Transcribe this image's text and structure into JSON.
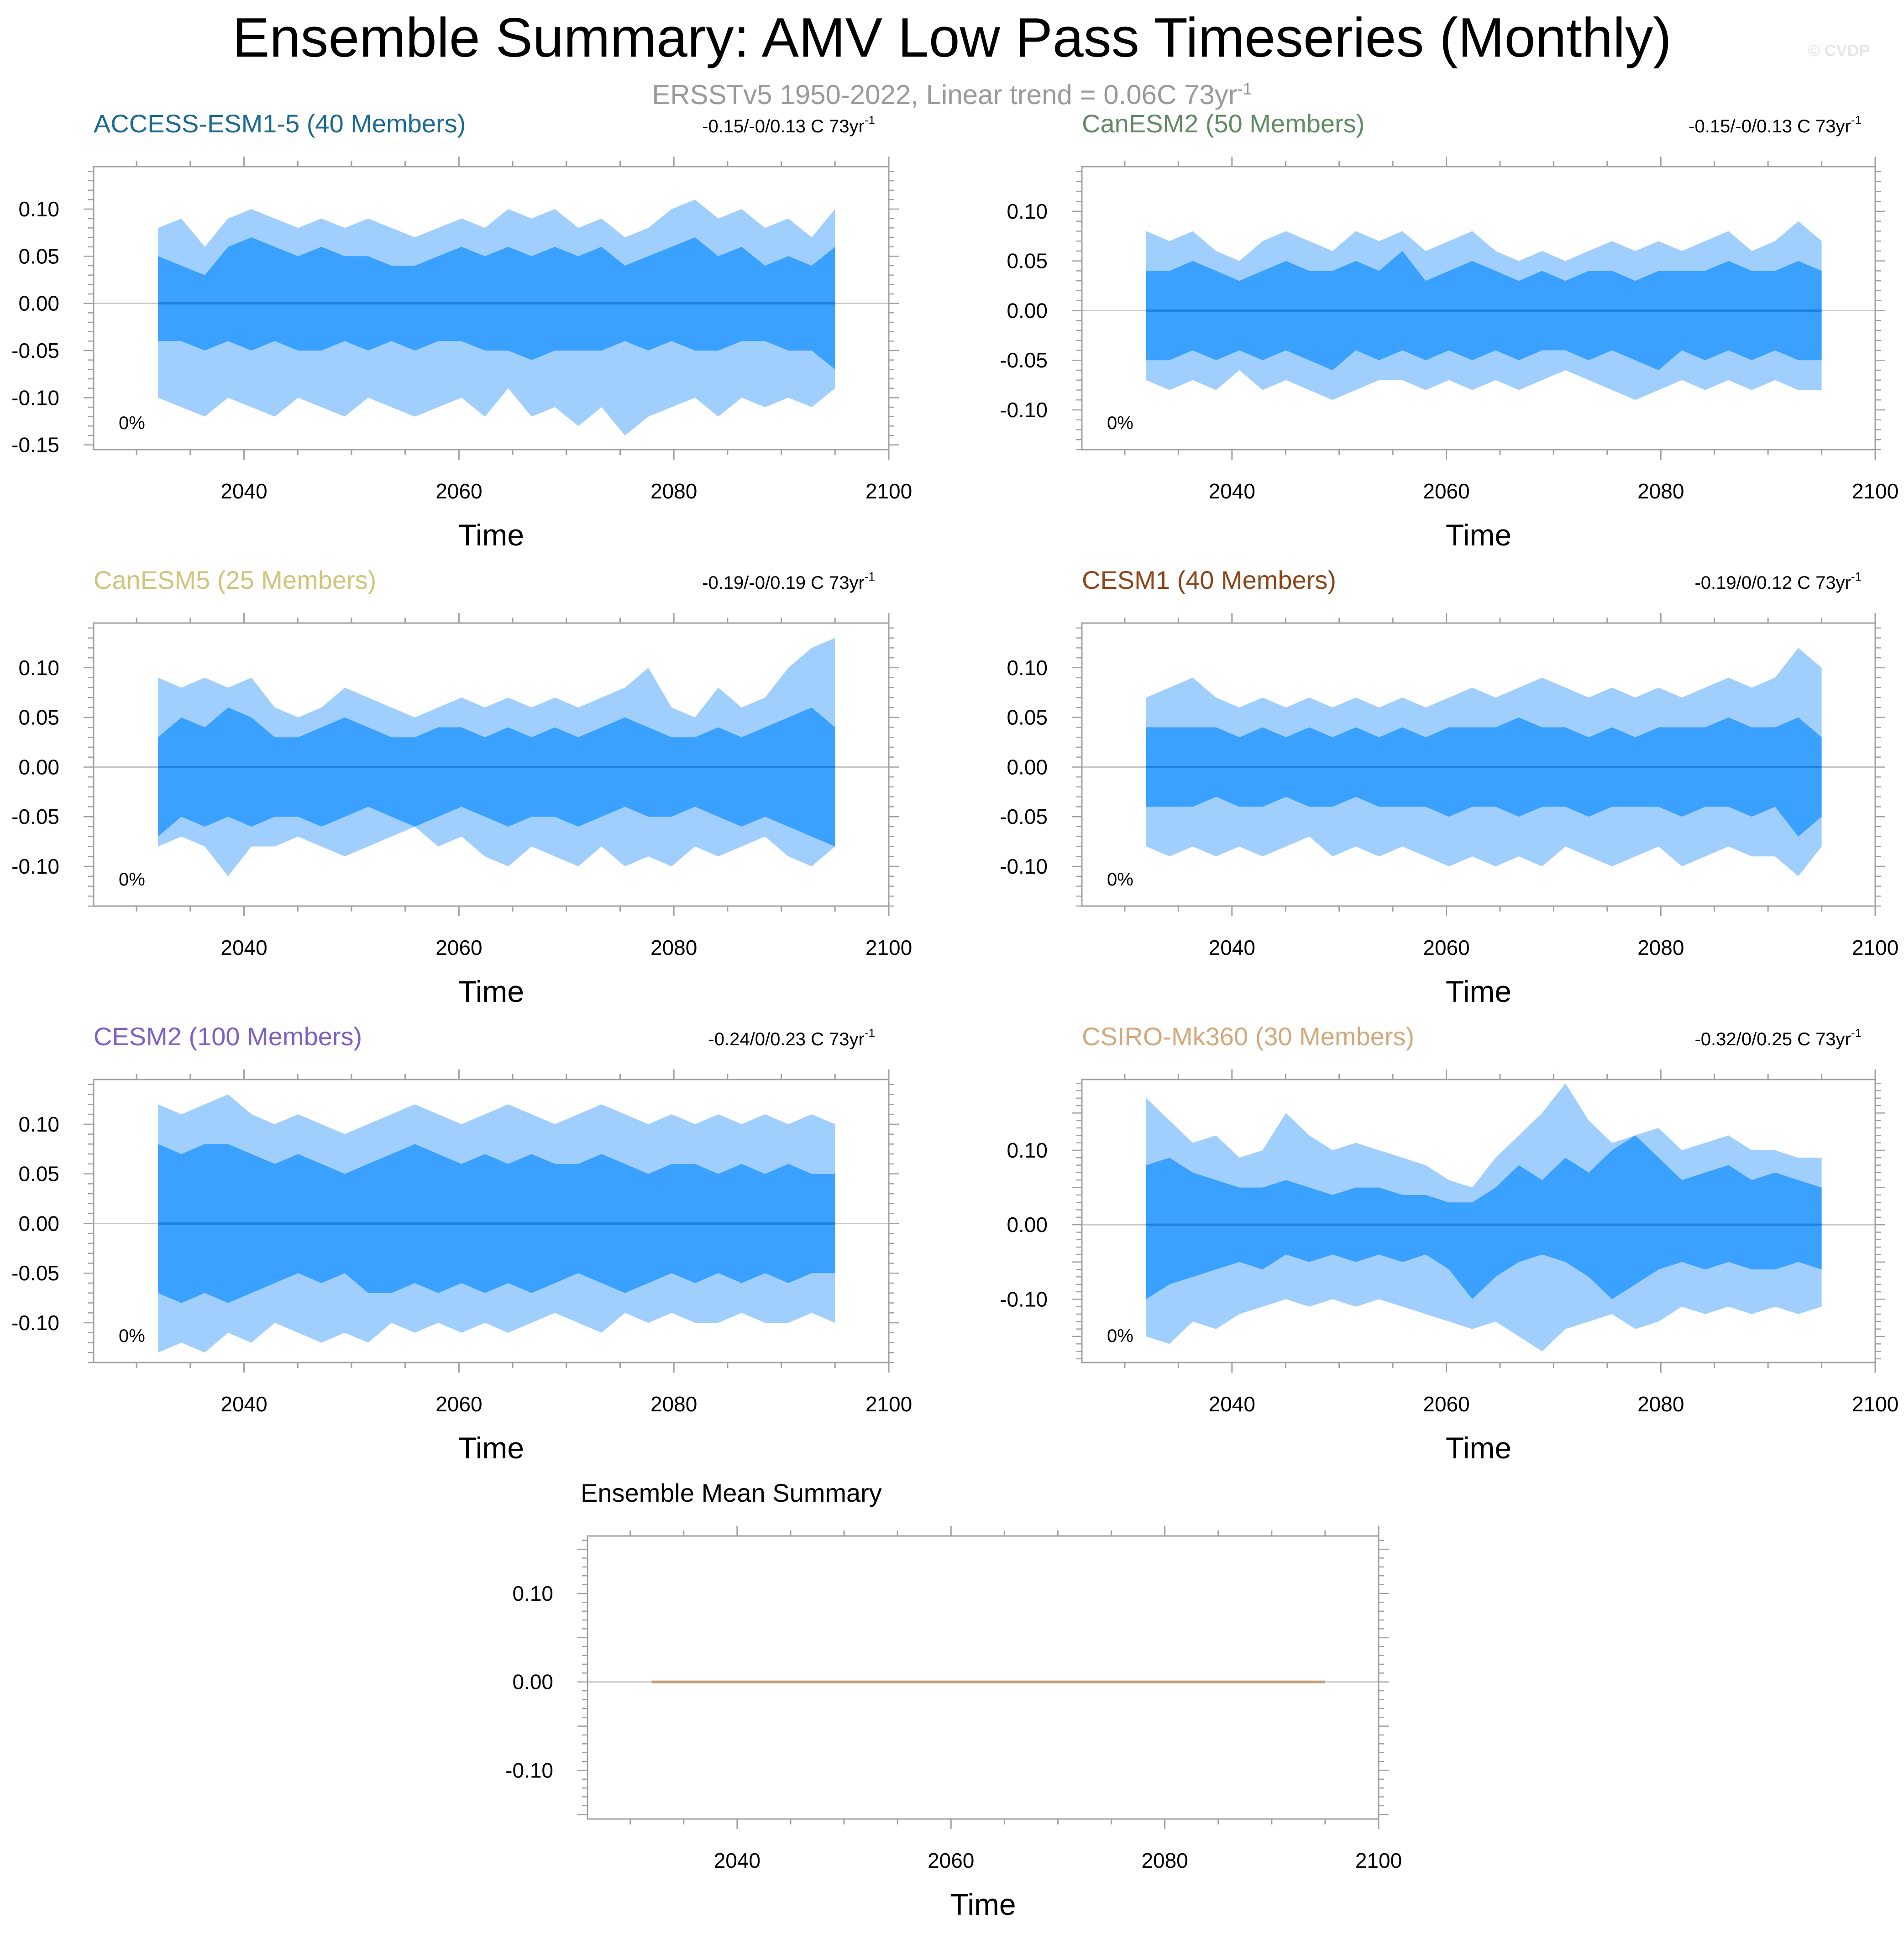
{
  "title": "Ensemble Summary: AMV Low Pass Timeseries (Monthly)",
  "subtitle": "ERSSTv5 1950-2022, Linear trend = 0.06C 73yr",
  "subtitle_sup": "-1",
  "watermark": "© CVDP",
  "colors": {
    "outer_band": "#a1cffd",
    "inner_band": "#3aa1fe",
    "mean_line": "#1f80e2",
    "zero_line": "#c8c8c8",
    "ensemble_mean_line": "#c2a077"
  },
  "chart_data": [
    {
      "type": "area",
      "title": "ACCESS-ESM1-5 (40 Members)",
      "title_color": "#1b6a91",
      "annotation": "-0.15/-0/0.13 C 73yr",
      "annotation_sup": "-1",
      "corner_label": "0%",
      "xlabel": "Time",
      "xlim": [
        2026,
        2100
      ],
      "ylim": [
        -0.155,
        0.145
      ],
      "xticks": [
        2040,
        2060,
        2080,
        2100
      ],
      "yticks": [
        0.1,
        0.05,
        0.0,
        -0.05,
        -0.1,
        -0.15
      ],
      "ytick_labels": [
        "0.10",
        "0.05",
        "0.00",
        "-0.05",
        "-0.10",
        "-0.15"
      ],
      "x_start": 2032,
      "x_end": 2095,
      "outer_upper": [
        0.08,
        0.09,
        0.06,
        0.09,
        0.1,
        0.09,
        0.08,
        0.09,
        0.08,
        0.09,
        0.08,
        0.07,
        0.08,
        0.09,
        0.08,
        0.1,
        0.09,
        0.1,
        0.08,
        0.09,
        0.07,
        0.08,
        0.1,
        0.11,
        0.09,
        0.1,
        0.08,
        0.09,
        0.07,
        0.1
      ],
      "inner_upper": [
        0.05,
        0.04,
        0.03,
        0.06,
        0.07,
        0.06,
        0.05,
        0.06,
        0.05,
        0.05,
        0.04,
        0.04,
        0.05,
        0.06,
        0.05,
        0.06,
        0.05,
        0.06,
        0.05,
        0.06,
        0.04,
        0.05,
        0.06,
        0.07,
        0.05,
        0.06,
        0.04,
        0.05,
        0.04,
        0.06
      ],
      "inner_lower": [
        -0.04,
        -0.04,
        -0.05,
        -0.04,
        -0.05,
        -0.04,
        -0.05,
        -0.05,
        -0.04,
        -0.05,
        -0.04,
        -0.05,
        -0.04,
        -0.04,
        -0.05,
        -0.05,
        -0.06,
        -0.05,
        -0.05,
        -0.05,
        -0.04,
        -0.05,
        -0.04,
        -0.05,
        -0.05,
        -0.04,
        -0.04,
        -0.05,
        -0.05,
        -0.07
      ],
      "outer_lower": [
        -0.1,
        -0.11,
        -0.12,
        -0.1,
        -0.11,
        -0.12,
        -0.1,
        -0.11,
        -0.12,
        -0.1,
        -0.11,
        -0.12,
        -0.11,
        -0.1,
        -0.12,
        -0.09,
        -0.12,
        -0.11,
        -0.13,
        -0.11,
        -0.14,
        -0.12,
        -0.11,
        -0.1,
        -0.12,
        -0.1,
        -0.11,
        -0.1,
        -0.11,
        -0.09
      ]
    },
    {
      "type": "area",
      "title": "CanESM2 (50 Members)",
      "title_color": "#5f8a62",
      "annotation": "-0.15/-0/0.13 C 73yr",
      "annotation_sup": "-1",
      "corner_label": "0%",
      "xlabel": "Time",
      "xlim": [
        2026,
        2100
      ],
      "ylim": [
        -0.14,
        0.145
      ],
      "xticks": [
        2040,
        2060,
        2080,
        2100
      ],
      "yticks": [
        0.1,
        0.05,
        0.0,
        -0.05,
        -0.1
      ],
      "ytick_labels": [
        "0.10",
        "0.05",
        "0.00",
        "-0.05",
        "-0.10"
      ],
      "x_start": 2032,
      "x_end": 2095,
      "outer_upper": [
        0.08,
        0.07,
        0.08,
        0.06,
        0.05,
        0.07,
        0.08,
        0.07,
        0.06,
        0.08,
        0.07,
        0.08,
        0.06,
        0.07,
        0.08,
        0.06,
        0.05,
        0.06,
        0.05,
        0.06,
        0.07,
        0.06,
        0.07,
        0.06,
        0.07,
        0.08,
        0.06,
        0.07,
        0.09,
        0.07
      ],
      "inner_upper": [
        0.04,
        0.04,
        0.05,
        0.04,
        0.03,
        0.04,
        0.05,
        0.04,
        0.04,
        0.05,
        0.04,
        0.06,
        0.03,
        0.04,
        0.05,
        0.04,
        0.03,
        0.04,
        0.03,
        0.04,
        0.04,
        0.03,
        0.04,
        0.04,
        0.04,
        0.05,
        0.04,
        0.04,
        0.05,
        0.04
      ],
      "inner_lower": [
        -0.05,
        -0.05,
        -0.04,
        -0.05,
        -0.04,
        -0.05,
        -0.04,
        -0.05,
        -0.06,
        -0.04,
        -0.05,
        -0.04,
        -0.05,
        -0.04,
        -0.05,
        -0.04,
        -0.05,
        -0.04,
        -0.04,
        -0.05,
        -0.04,
        -0.05,
        -0.06,
        -0.04,
        -0.05,
        -0.04,
        -0.05,
        -0.04,
        -0.05,
        -0.05
      ],
      "outer_lower": [
        -0.07,
        -0.08,
        -0.07,
        -0.08,
        -0.06,
        -0.08,
        -0.07,
        -0.08,
        -0.09,
        -0.08,
        -0.07,
        -0.07,
        -0.08,
        -0.07,
        -0.08,
        -0.07,
        -0.08,
        -0.07,
        -0.06,
        -0.07,
        -0.08,
        -0.09,
        -0.08,
        -0.07,
        -0.08,
        -0.07,
        -0.08,
        -0.07,
        -0.08,
        -0.08
      ]
    },
    {
      "type": "area",
      "title": "CanESM5 (25 Members)",
      "title_color": "#cfc47a",
      "annotation": "-0.19/-0/0.19 C 73yr",
      "annotation_sup": "-1",
      "corner_label": "0%",
      "xlabel": "Time",
      "xlim": [
        2026,
        2100
      ],
      "ylim": [
        -0.14,
        0.145
      ],
      "xticks": [
        2040,
        2060,
        2080,
        2100
      ],
      "yticks": [
        0.1,
        0.05,
        0.0,
        -0.05,
        -0.1
      ],
      "ytick_labels": [
        "0.10",
        "0.05",
        "0.00",
        "-0.05",
        "-0.10"
      ],
      "x_start": 2032,
      "x_end": 2095,
      "outer_upper": [
        0.09,
        0.08,
        0.09,
        0.08,
        0.09,
        0.06,
        0.05,
        0.06,
        0.08,
        0.07,
        0.06,
        0.05,
        0.06,
        0.07,
        0.06,
        0.07,
        0.06,
        0.07,
        0.06,
        0.07,
        0.08,
        0.1,
        0.06,
        0.05,
        0.08,
        0.06,
        0.07,
        0.1,
        0.12,
        0.13
      ],
      "inner_upper": [
        0.03,
        0.05,
        0.04,
        0.06,
        0.05,
        0.03,
        0.03,
        0.04,
        0.05,
        0.04,
        0.03,
        0.03,
        0.04,
        0.04,
        0.03,
        0.04,
        0.03,
        0.04,
        0.03,
        0.04,
        0.05,
        0.04,
        0.03,
        0.03,
        0.04,
        0.03,
        0.04,
        0.05,
        0.06,
        0.04
      ],
      "inner_lower": [
        -0.07,
        -0.05,
        -0.06,
        -0.05,
        -0.06,
        -0.05,
        -0.05,
        -0.06,
        -0.05,
        -0.04,
        -0.05,
        -0.06,
        -0.05,
        -0.04,
        -0.05,
        -0.06,
        -0.05,
        -0.05,
        -0.06,
        -0.05,
        -0.04,
        -0.05,
        -0.05,
        -0.04,
        -0.05,
        -0.06,
        -0.05,
        -0.06,
        -0.07,
        -0.08
      ],
      "outer_lower": [
        -0.08,
        -0.07,
        -0.08,
        -0.11,
        -0.08,
        -0.08,
        -0.07,
        -0.08,
        -0.09,
        -0.08,
        -0.07,
        -0.06,
        -0.08,
        -0.07,
        -0.09,
        -0.1,
        -0.08,
        -0.09,
        -0.1,
        -0.08,
        -0.1,
        -0.09,
        -0.1,
        -0.08,
        -0.09,
        -0.08,
        -0.07,
        -0.09,
        -0.1,
        -0.08
      ]
    },
    {
      "type": "area",
      "title": "CESM1 (40 Members)",
      "title_color": "#8c4418",
      "annotation": "-0.19/0/0.12 C 73yr",
      "annotation_sup": "-1",
      "corner_label": "0%",
      "xlabel": "Time",
      "xlim": [
        2026,
        2100
      ],
      "ylim": [
        -0.14,
        0.145
      ],
      "xticks": [
        2040,
        2060,
        2080,
        2100
      ],
      "yticks": [
        0.1,
        0.05,
        0.0,
        -0.05,
        -0.1
      ],
      "ytick_labels": [
        "0.10",
        "0.05",
        "0.00",
        "-0.05",
        "-0.10"
      ],
      "x_start": 2032,
      "x_end": 2095,
      "outer_upper": [
        0.07,
        0.08,
        0.09,
        0.07,
        0.06,
        0.07,
        0.06,
        0.07,
        0.06,
        0.07,
        0.06,
        0.07,
        0.06,
        0.07,
        0.08,
        0.07,
        0.08,
        0.09,
        0.08,
        0.07,
        0.08,
        0.07,
        0.08,
        0.07,
        0.08,
        0.09,
        0.08,
        0.09,
        0.12,
        0.1
      ],
      "inner_upper": [
        0.04,
        0.04,
        0.04,
        0.04,
        0.03,
        0.04,
        0.03,
        0.04,
        0.03,
        0.04,
        0.03,
        0.04,
        0.03,
        0.04,
        0.04,
        0.04,
        0.05,
        0.04,
        0.04,
        0.03,
        0.04,
        0.03,
        0.04,
        0.04,
        0.04,
        0.05,
        0.04,
        0.04,
        0.05,
        0.03
      ],
      "inner_lower": [
        -0.04,
        -0.04,
        -0.04,
        -0.03,
        -0.04,
        -0.04,
        -0.03,
        -0.04,
        -0.04,
        -0.03,
        -0.04,
        -0.04,
        -0.04,
        -0.05,
        -0.04,
        -0.04,
        -0.05,
        -0.04,
        -0.04,
        -0.05,
        -0.04,
        -0.04,
        -0.04,
        -0.05,
        -0.04,
        -0.04,
        -0.05,
        -0.04,
        -0.07,
        -0.05
      ],
      "outer_lower": [
        -0.08,
        -0.09,
        -0.08,
        -0.09,
        -0.08,
        -0.09,
        -0.08,
        -0.07,
        -0.09,
        -0.08,
        -0.09,
        -0.08,
        -0.09,
        -0.1,
        -0.09,
        -0.1,
        -0.09,
        -0.1,
        -0.08,
        -0.09,
        -0.1,
        -0.09,
        -0.08,
        -0.1,
        -0.09,
        -0.08,
        -0.09,
        -0.09,
        -0.11,
        -0.08
      ]
    },
    {
      "type": "area",
      "title": "CESM2 (100 Members)",
      "title_color": "#7f5fc7",
      "annotation": "-0.24/0/0.23 C 73yr",
      "annotation_sup": "-1",
      "corner_label": "0%",
      "xlabel": "Time",
      "xlim": [
        2026,
        2100
      ],
      "ylim": [
        -0.14,
        0.145
      ],
      "xticks": [
        2040,
        2060,
        2080,
        2100
      ],
      "yticks": [
        0.1,
        0.05,
        0.0,
        -0.05,
        -0.1
      ],
      "ytick_labels": [
        "0.10",
        "0.05",
        "0.00",
        "-0.05",
        "-0.10"
      ],
      "x_start": 2032,
      "x_end": 2095,
      "outer_upper": [
        0.12,
        0.11,
        0.12,
        0.13,
        0.11,
        0.1,
        0.11,
        0.1,
        0.09,
        0.1,
        0.11,
        0.12,
        0.11,
        0.1,
        0.11,
        0.12,
        0.11,
        0.1,
        0.11,
        0.12,
        0.11,
        0.1,
        0.11,
        0.1,
        0.11,
        0.1,
        0.11,
        0.1,
        0.11,
        0.1
      ],
      "inner_upper": [
        0.08,
        0.07,
        0.08,
        0.08,
        0.07,
        0.06,
        0.07,
        0.06,
        0.05,
        0.06,
        0.07,
        0.08,
        0.07,
        0.06,
        0.07,
        0.06,
        0.07,
        0.06,
        0.06,
        0.07,
        0.06,
        0.05,
        0.06,
        0.06,
        0.05,
        0.06,
        0.05,
        0.06,
        0.05,
        0.05
      ],
      "inner_lower": [
        -0.07,
        -0.08,
        -0.07,
        -0.08,
        -0.07,
        -0.06,
        -0.05,
        -0.06,
        -0.05,
        -0.07,
        -0.07,
        -0.06,
        -0.07,
        -0.06,
        -0.07,
        -0.06,
        -0.07,
        -0.06,
        -0.05,
        -0.06,
        -0.07,
        -0.06,
        -0.05,
        -0.06,
        -0.05,
        -0.06,
        -0.05,
        -0.06,
        -0.05,
        -0.05
      ],
      "outer_lower": [
        -0.13,
        -0.12,
        -0.13,
        -0.11,
        -0.12,
        -0.1,
        -0.11,
        -0.12,
        -0.11,
        -0.12,
        -0.1,
        -0.11,
        -0.1,
        -0.11,
        -0.1,
        -0.11,
        -0.1,
        -0.09,
        -0.1,
        -0.11,
        -0.09,
        -0.1,
        -0.09,
        -0.1,
        -0.1,
        -0.09,
        -0.1,
        -0.1,
        -0.09,
        -0.1
      ]
    },
    {
      "type": "area",
      "title": "CSIRO-Mk360 (30 Members)",
      "title_color": "#d2a97c",
      "annotation": "-0.32/0/0.25 C 73yr",
      "annotation_sup": "-1",
      "corner_label": "0%",
      "xlabel": "Time",
      "xlim": [
        2026,
        2100
      ],
      "ylim": [
        -0.185,
        0.195
      ],
      "xticks": [
        2040,
        2060,
        2080,
        2100
      ],
      "yticks": [
        0.1,
        0.0,
        -0.1
      ],
      "ytick_labels": [
        "0.10",
        "0.00",
        "-0.10"
      ],
      "x_start": 2032,
      "x_end": 2095,
      "outer_upper": [
        0.17,
        0.14,
        0.11,
        0.12,
        0.09,
        0.1,
        0.15,
        0.12,
        0.1,
        0.11,
        0.1,
        0.09,
        0.08,
        0.06,
        0.05,
        0.09,
        0.12,
        0.15,
        0.19,
        0.14,
        0.11,
        0.12,
        0.13,
        0.1,
        0.11,
        0.12,
        0.1,
        0.1,
        0.09,
        0.09
      ],
      "inner_upper": [
        0.08,
        0.09,
        0.07,
        0.06,
        0.05,
        0.05,
        0.06,
        0.05,
        0.04,
        0.05,
        0.05,
        0.04,
        0.04,
        0.03,
        0.03,
        0.05,
        0.08,
        0.06,
        0.09,
        0.07,
        0.1,
        0.12,
        0.09,
        0.06,
        0.07,
        0.08,
        0.06,
        0.07,
        0.06,
        0.05
      ],
      "inner_lower": [
        -0.1,
        -0.08,
        -0.07,
        -0.06,
        -0.05,
        -0.06,
        -0.04,
        -0.05,
        -0.04,
        -0.05,
        -0.04,
        -0.05,
        -0.04,
        -0.06,
        -0.1,
        -0.07,
        -0.05,
        -0.04,
        -0.05,
        -0.07,
        -0.1,
        -0.08,
        -0.06,
        -0.05,
        -0.06,
        -0.05,
        -0.06,
        -0.06,
        -0.05,
        -0.06
      ],
      "outer_lower": [
        -0.15,
        -0.16,
        -0.13,
        -0.14,
        -0.12,
        -0.11,
        -0.1,
        -0.11,
        -0.1,
        -0.11,
        -0.1,
        -0.11,
        -0.12,
        -0.13,
        -0.14,
        -0.13,
        -0.15,
        -0.17,
        -0.14,
        -0.13,
        -0.12,
        -0.14,
        -0.13,
        -0.11,
        -0.12,
        -0.11,
        -0.12,
        -0.11,
        -0.12,
        -0.11
      ]
    },
    {
      "type": "line",
      "title": "Ensemble Mean Summary",
      "title_color": "#000000",
      "xlabel": "Time",
      "xlim": [
        2026,
        2100
      ],
      "ylim": [
        -0.155,
        0.165
      ],
      "xticks": [
        2040,
        2060,
        2080,
        2100
      ],
      "yticks": [
        0.1,
        0.0,
        -0.1
      ],
      "ytick_labels": [
        "0.10",
        "0.00",
        "-0.10"
      ],
      "x_start": 2032,
      "x_end": 2095,
      "series": [
        {
          "name": "ensemble mean",
          "values": [
            0.0,
            0.0
          ]
        }
      ]
    }
  ]
}
